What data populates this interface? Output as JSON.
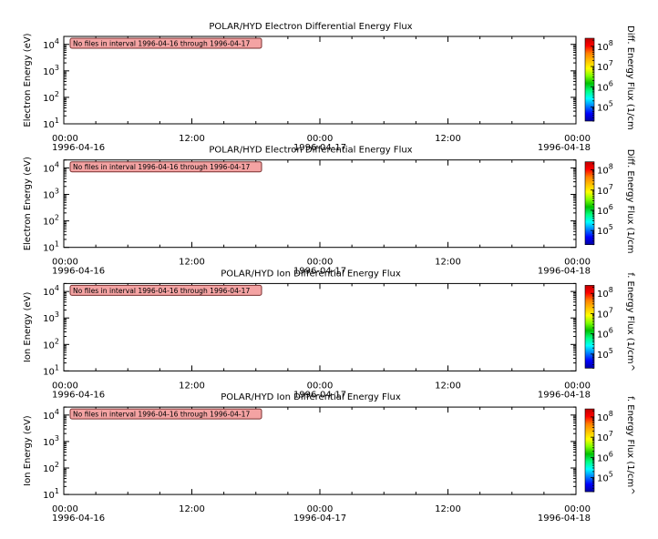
{
  "chart_data": [
    {
      "type": "heatmap",
      "title": "POLAR/HYD  Electron Differential Energy Flux",
      "ylabel": "Electron Energy (eV)",
      "colorbar_label": "Diff. Energy Flux (1/cm",
      "message": "No files in interval 1996-04-16 through 1996-04-17",
      "y_scale": "log",
      "ylim": [
        10,
        20000
      ],
      "y_ticks": [
        {
          "base": "10",
          "exp": "1"
        },
        {
          "base": "10",
          "exp": "2"
        },
        {
          "base": "10",
          "exp": "3"
        },
        {
          "base": "10",
          "exp": "4"
        }
      ],
      "x_ticks": [
        {
          "time": "00:00",
          "date": "1996-04-16"
        },
        {
          "time": "12:00",
          "date": ""
        },
        {
          "time": "00:00",
          "date": "1996-04-17"
        },
        {
          "time": "12:00",
          "date": ""
        },
        {
          "time": "00:00",
          "date": "1996-04-18"
        }
      ],
      "colorbar_ticks": [
        {
          "base": "10",
          "exp": "5"
        },
        {
          "base": "10",
          "exp": "6"
        },
        {
          "base": "10",
          "exp": "7"
        },
        {
          "base": "10",
          "exp": "8"
        }
      ],
      "colorbar_scale": "log",
      "colorbar_range": [
        20000,
        250000000
      ],
      "values": []
    },
    {
      "type": "heatmap",
      "title": "POLAR/HYD  Electron Differential Energy Flux",
      "ylabel": "Electron Energy (eV)",
      "colorbar_label": "Diff. Energy Flux (1/cm",
      "message": "No files in interval 1996-04-16 through 1996-04-17",
      "y_scale": "log",
      "ylim": [
        10,
        20000
      ],
      "y_ticks": [
        {
          "base": "10",
          "exp": "1"
        },
        {
          "base": "10",
          "exp": "2"
        },
        {
          "base": "10",
          "exp": "3"
        },
        {
          "base": "10",
          "exp": "4"
        }
      ],
      "x_ticks": [
        {
          "time": "00:00",
          "date": "1996-04-16"
        },
        {
          "time": "12:00",
          "date": ""
        },
        {
          "time": "00:00",
          "date": "1996-04-17"
        },
        {
          "time": "12:00",
          "date": ""
        },
        {
          "time": "00:00",
          "date": "1996-04-18"
        }
      ],
      "colorbar_ticks": [
        {
          "base": "10",
          "exp": "5"
        },
        {
          "base": "10",
          "exp": "6"
        },
        {
          "base": "10",
          "exp": "7"
        },
        {
          "base": "10",
          "exp": "8"
        }
      ],
      "colorbar_scale": "log",
      "colorbar_range": [
        20000,
        250000000
      ],
      "values": []
    },
    {
      "type": "heatmap",
      "title": "POLAR/HYD  Ion Differential Energy Flux",
      "ylabel": "Ion Energy (eV)",
      "colorbar_label": "f. Energy Flux (1/cm^",
      "message": "No files in interval 1996-04-16 through 1996-04-17",
      "y_scale": "log",
      "ylim": [
        10,
        20000
      ],
      "y_ticks": [
        {
          "base": "10",
          "exp": "1"
        },
        {
          "base": "10",
          "exp": "2"
        },
        {
          "base": "10",
          "exp": "3"
        },
        {
          "base": "10",
          "exp": "4"
        }
      ],
      "x_ticks": [
        {
          "time": "00:00",
          "date": "1996-04-16"
        },
        {
          "time": "12:00",
          "date": ""
        },
        {
          "time": "00:00",
          "date": "1996-04-17"
        },
        {
          "time": "12:00",
          "date": ""
        },
        {
          "time": "00:00",
          "date": "1996-04-18"
        }
      ],
      "colorbar_ticks": [
        {
          "base": "10",
          "exp": "5"
        },
        {
          "base": "10",
          "exp": "6"
        },
        {
          "base": "10",
          "exp": "7"
        },
        {
          "base": "10",
          "exp": "8"
        }
      ],
      "colorbar_scale": "log",
      "colorbar_range": [
        20000,
        250000000
      ],
      "values": []
    },
    {
      "type": "heatmap",
      "title": "POLAR/HYD  Ion Differential Energy Flux",
      "ylabel": "Ion Energy (eV)",
      "colorbar_label": "f. Energy Flux (1/cm^",
      "message": "No files in interval 1996-04-16 through 1996-04-17",
      "y_scale": "log",
      "ylim": [
        10,
        20000
      ],
      "y_ticks": [
        {
          "base": "10",
          "exp": "1"
        },
        {
          "base": "10",
          "exp": "2"
        },
        {
          "base": "10",
          "exp": "3"
        },
        {
          "base": "10",
          "exp": "4"
        }
      ],
      "x_ticks": [
        {
          "time": "00:00",
          "date": "1996-04-16"
        },
        {
          "time": "12:00",
          "date": ""
        },
        {
          "time": "00:00",
          "date": "1996-04-17"
        },
        {
          "time": "12:00",
          "date": ""
        },
        {
          "time": "00:00",
          "date": "1996-04-18"
        }
      ],
      "colorbar_ticks": [
        {
          "base": "10",
          "exp": "5"
        },
        {
          "base": "10",
          "exp": "6"
        },
        {
          "base": "10",
          "exp": "7"
        },
        {
          "base": "10",
          "exp": "8"
        }
      ],
      "colorbar_scale": "log",
      "colorbar_range": [
        20000,
        250000000
      ],
      "values": []
    }
  ],
  "colors": {
    "message_fill": "#f4a3a3",
    "message_stroke": "#7a3030",
    "colormap": [
      "#0000a0",
      "#0000ff",
      "#0080ff",
      "#00ffff",
      "#00ff80",
      "#00c000",
      "#80ff00",
      "#ffff00",
      "#ffc000",
      "#ff8000",
      "#ff0000",
      "#c00000"
    ]
  }
}
